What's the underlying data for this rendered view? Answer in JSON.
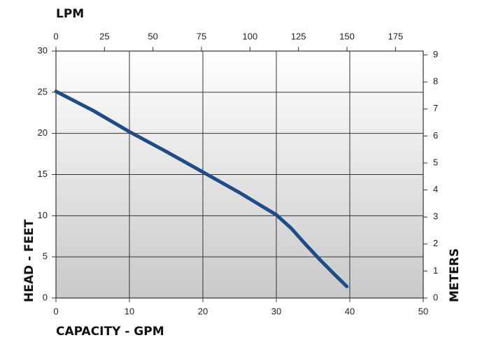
{
  "chart_data": {
    "type": "line",
    "x_label": "CAPACITY - GPM",
    "y_label": "HEAD - FEET",
    "x2_label": "LPM",
    "y2_label": "METERS",
    "x": [
      0,
      5,
      10,
      15,
      20,
      25,
      30,
      32,
      34,
      36,
      38,
      39.6
    ],
    "series": [
      {
        "color": "#1f4b86",
        "values": [
          25.1,
          22.8,
          20.2,
          17.8,
          15.3,
          12.8,
          10.1,
          8.5,
          6.5,
          4.6,
          2.8,
          1.4
        ]
      }
    ],
    "xlim": [
      0,
      50
    ],
    "xticks": [
      0,
      10,
      20,
      30,
      40,
      50
    ],
    "ylim": [
      0,
      30
    ],
    "yticks": [
      0,
      5,
      10,
      15,
      20,
      25,
      30
    ],
    "x2lim": [
      0,
      189.3
    ],
    "x2ticks": [
      0,
      25,
      50,
      75,
      100,
      125,
      150,
      175
    ],
    "y2lim": [
      0,
      9.144
    ],
    "y2ticks": [
      0,
      1,
      2,
      3,
      4,
      5,
      6,
      7,
      8,
      9
    ],
    "grid": true
  }
}
